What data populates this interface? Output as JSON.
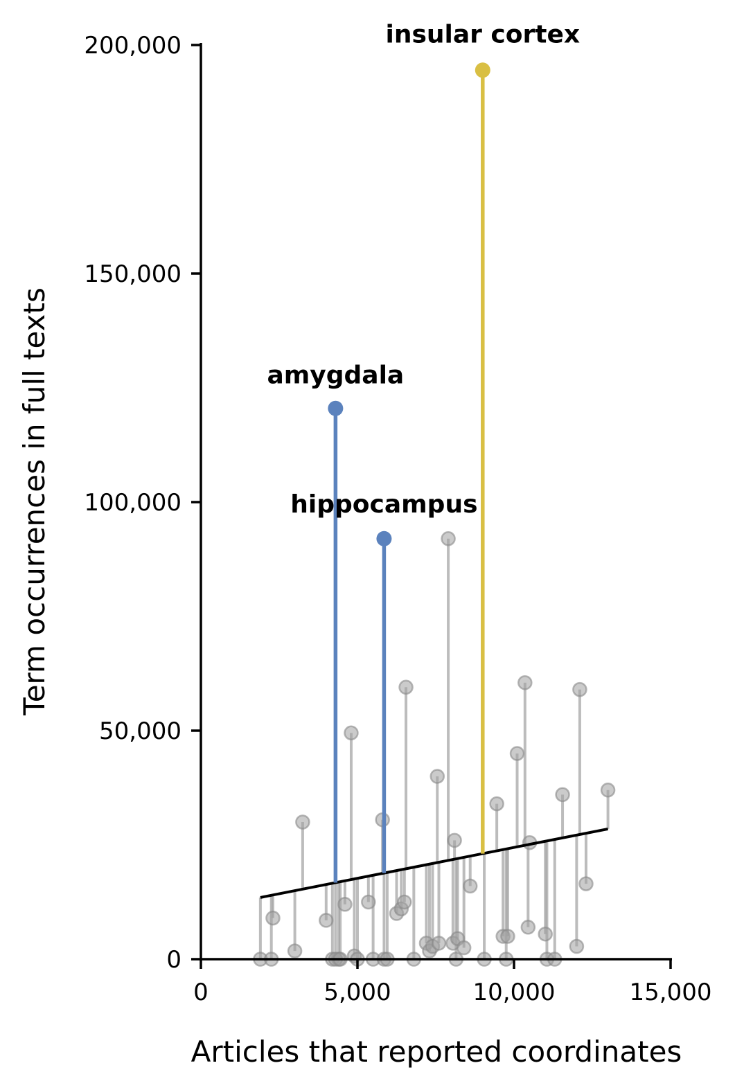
{
  "chart_data": {
    "type": "scatter",
    "xlabel": "Articles that reported coordinates",
    "ylabel": "Term occurrences in full texts",
    "xlim": [
      0,
      15000
    ],
    "ylim": [
      0,
      200000
    ],
    "xticks": [
      {
        "value": 0,
        "label": "0"
      },
      {
        "value": 5000,
        "label": "5,000"
      },
      {
        "value": 10000,
        "label": "10,000"
      },
      {
        "value": 15000,
        "label": "15,000"
      }
    ],
    "yticks": [
      {
        "value": 0,
        "label": "0"
      },
      {
        "value": 50000,
        "label": "50,000"
      },
      {
        "value": 100000,
        "label": "100,000"
      },
      {
        "value": 150000,
        "label": "150,000"
      },
      {
        "value": 200000,
        "label": "200,000"
      }
    ],
    "grid": false,
    "legend": "none",
    "trendline": {
      "x": [
        1900,
        13000
      ],
      "y": [
        13500,
        28500
      ],
      "color": "#000000"
    },
    "highlighted": [
      {
        "label": "amygdala",
        "x": 4300,
        "y": 120500,
        "color": "#5b82bd"
      },
      {
        "label": "hippocampus",
        "x": 5850,
        "y": 92000,
        "color": "#5b82bd"
      },
      {
        "label": "insular cortex",
        "x": 9000,
        "y": 194500,
        "color": "#d9bf43"
      }
    ],
    "points": {
      "color": "#a0a0a0",
      "x": [
        1900,
        2300,
        2250,
        3000,
        3250,
        4000,
        4200,
        4400,
        4600,
        4800,
        4900,
        5000,
        5350,
        5500,
        5800,
        5850,
        5950,
        6250,
        6400,
        6500,
        6550,
        6800,
        7200,
        7300,
        7400,
        7600,
        7550,
        7900,
        8050,
        8100,
        8150,
        8200,
        8400,
        8600,
        9050,
        9450,
        9650,
        9750,
        9800,
        10100,
        10350,
        10450,
        10500,
        11000,
        11050,
        11300,
        11550,
        12000,
        12100,
        12300,
        13000,
        4300,
        4450
      ],
      "y": [
        0,
        9000,
        0,
        1800,
        30000,
        8500,
        0,
        0,
        12000,
        49500,
        700,
        0,
        12500,
        0,
        30500,
        0,
        0,
        10000,
        11000,
        12500,
        59500,
        0,
        3500,
        1800,
        2800,
        3500,
        40000,
        92000,
        3500,
        26000,
        0,
        4500,
        2500,
        16000,
        0,
        34000,
        5000,
        0,
        5000,
        45000,
        60500,
        7000,
        25500,
        5500,
        0,
        0,
        36000,
        2800,
        59000,
        16500,
        37000,
        0,
        0
      ]
    }
  }
}
